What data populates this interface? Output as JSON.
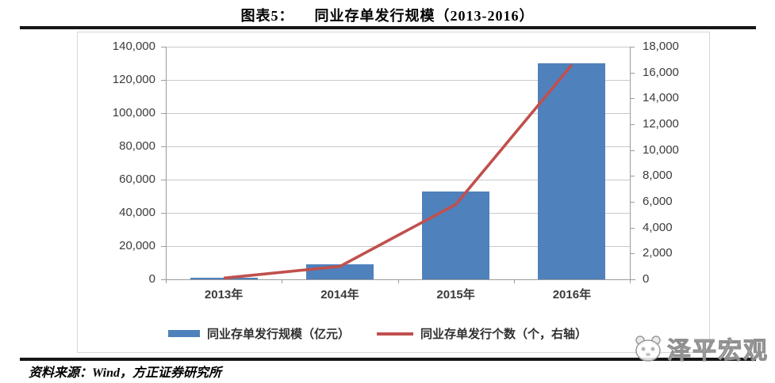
{
  "header": {
    "figure_label": "图表5：",
    "title": "同业存单发行规模（2013-2016）"
  },
  "footer": {
    "source": "资料来源：Wind，方正证券研究所"
  },
  "watermark": {
    "brand": "泽平宏观",
    "logo": "panda-logo-icon"
  },
  "chart_data": {
    "type": "bar",
    "subtype": "combo-bar-line-dual-axis",
    "categories": [
      "2013年",
      "2014年",
      "2015年",
      "2016年"
    ],
    "series": [
      {
        "name": "同业存单发行规模（亿元）",
        "type": "bar",
        "axis": "left",
        "color": "#4F81BD",
        "values": [
          400,
          9000,
          53000,
          130000
        ]
      },
      {
        "name": "同业存单发行个数（个，右轴）",
        "type": "line",
        "axis": "right",
        "color": "#C0504D",
        "values": [
          100,
          1000,
          5800,
          16600
        ]
      }
    ],
    "left_axis": {
      "min": 0,
      "max": 140000,
      "step": 20000,
      "tick_labels": [
        "140,000",
        "120,000",
        "100,000",
        "80,000",
        "60,000",
        "40,000",
        "20,000",
        "0"
      ]
    },
    "right_axis": {
      "min": 0,
      "max": 18000,
      "step": 2000,
      "tick_labels": [
        "18,000",
        "16,000",
        "14,000",
        "12,000",
        "10,000",
        "8,000",
        "6,000",
        "4,000",
        "2,000",
        "0"
      ]
    },
    "grid": true,
    "legend_position": "bottom",
    "colors": {
      "gridline": "#c9c9c9",
      "axis": "#9b9b9b",
      "tick_text": "#3b3b3b"
    }
  }
}
